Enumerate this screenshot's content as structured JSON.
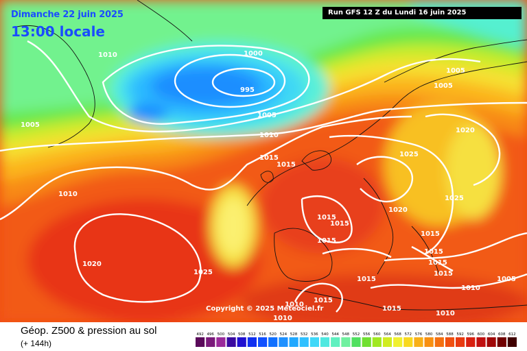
{
  "header": {
    "date": "Dimanche 22 juin 2025",
    "time": "13:00 locale",
    "run": "Run GFS 12 Z du Lundi 16 juin 2025"
  },
  "copyright": "Copyright © 2025 Meteociel.fr",
  "legend": {
    "title": "Géop. Z500 & pression au sol",
    "subtitle": "(+ 144h)",
    "scale_values": [
      "492",
      "496",
      "500",
      "504",
      "508",
      "512",
      "516",
      "520",
      "524",
      "528",
      "532",
      "536",
      "540",
      "544",
      "548",
      "552",
      "556",
      "560",
      "564",
      "568",
      "572",
      "576",
      "580",
      "584",
      "588",
      "592",
      "596",
      "600",
      "604",
      "608",
      "612"
    ],
    "scale_colors": [
      "#5a0a5a",
      "#7a1a7a",
      "#9a2a9a",
      "#3a0aa0",
      "#2010d0",
      "#1030f0",
      "#1050ff",
      "#1070ff",
      "#1e90ff",
      "#20a8ff",
      "#30c0ff",
      "#40d8f8",
      "#50e8e0",
      "#60f0c0",
      "#70f0a0",
      "#50e060",
      "#70e030",
      "#a0e820",
      "#d0ec20",
      "#f0f030",
      "#f8d820",
      "#f8b018",
      "#f89010",
      "#f47010",
      "#f05010",
      "#e83a10",
      "#d82010",
      "#c01010",
      "#a00808",
      "#700000",
      "#400000"
    ]
  },
  "isobars": [
    {
      "text": "1000"
    },
    {
      "text": "995"
    },
    {
      "text": "1005"
    },
    {
      "text": "1010"
    },
    {
      "text": "1005"
    },
    {
      "text": "1005"
    },
    {
      "text": "1005"
    },
    {
      "text": "1020"
    },
    {
      "text": "1010"
    },
    {
      "text": "1015"
    },
    {
      "text": "1015"
    },
    {
      "text": "1025"
    },
    {
      "text": "1025"
    },
    {
      "text": "1020"
    },
    {
      "text": "1015"
    },
    {
      "text": "1015"
    },
    {
      "text": "1015"
    },
    {
      "text": "1015"
    },
    {
      "text": "1015"
    },
    {
      "text": "1015"
    },
    {
      "text": "1020"
    },
    {
      "text": "1025"
    },
    {
      "text": "1010"
    },
    {
      "text": "1015"
    },
    {
      "text": "1015"
    },
    {
      "text": "1010"
    },
    {
      "text": "1015"
    },
    {
      "text": "1010"
    },
    {
      "text": "1010"
    },
    {
      "text": "1010"
    },
    {
      "text": "1005"
    },
    {
      "text": "1015"
    }
  ]
}
